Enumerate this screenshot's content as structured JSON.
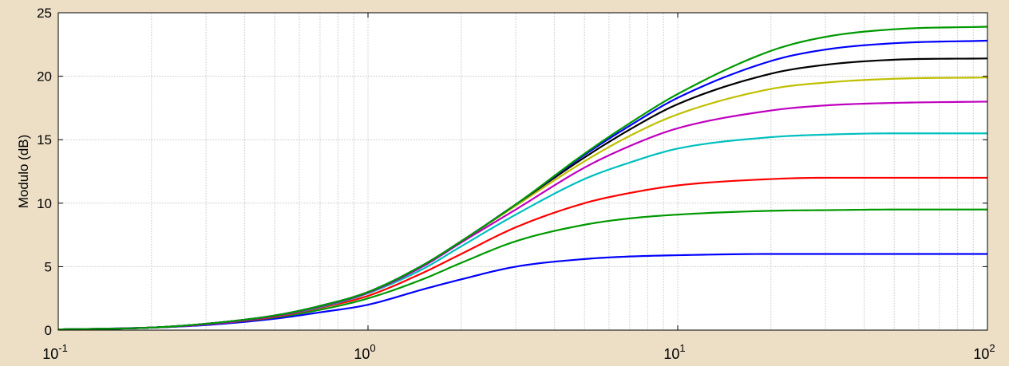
{
  "chart_data": {
    "type": "line",
    "title": "",
    "xlabel": "",
    "ylabel": "Modulo (dB)",
    "xscale": "log",
    "xlim": [
      0.1,
      100
    ],
    "ylim": [
      0,
      25
    ],
    "grid": true,
    "legend": "none",
    "x_ticks": [
      {
        "value": 0.1,
        "base": "10",
        "exp": "-1"
      },
      {
        "value": 1,
        "base": "10",
        "exp": "0"
      },
      {
        "value": 10,
        "base": "10",
        "exp": "1"
      },
      {
        "value": 100,
        "base": "10",
        "exp": "2"
      }
    ],
    "y_ticks": [
      {
        "value": 0,
        "label": "0"
      },
      {
        "value": 5,
        "label": "5"
      },
      {
        "value": 10,
        "label": "10"
      },
      {
        "value": 15,
        "label": "15"
      },
      {
        "value": 20,
        "label": "20"
      },
      {
        "value": 25,
        "label": "25"
      }
    ],
    "x": [
      0.1,
      0.2,
      0.3,
      0.5,
      0.7,
      1,
      1.5,
      2,
      3,
      5,
      7,
      10,
      20,
      30,
      50,
      100
    ],
    "series": [
      {
        "color": "#0000ff",
        "values": [
          0.05,
          0.2,
          0.4,
          0.9,
          1.4,
          2.0,
          3.2,
          4.0,
          5.0,
          5.6,
          5.8,
          5.9,
          6.0,
          6.0,
          6.0,
          6.0
        ]
      },
      {
        "color": "#009900",
        "values": [
          0.05,
          0.2,
          0.45,
          1.0,
          1.6,
          2.5,
          4.0,
          5.3,
          7.0,
          8.3,
          8.8,
          9.1,
          9.4,
          9.45,
          9.5,
          9.5
        ]
      },
      {
        "color": "#ff0000",
        "values": [
          0.05,
          0.2,
          0.45,
          1.05,
          1.75,
          2.7,
          4.5,
          6.0,
          8.1,
          10.0,
          10.8,
          11.4,
          11.9,
          12.0,
          12.0,
          12.0
        ]
      },
      {
        "color": "#00bfbf",
        "values": [
          0.05,
          0.2,
          0.45,
          1.1,
          1.8,
          2.9,
          4.8,
          6.6,
          9.1,
          11.9,
          13.2,
          14.3,
          15.2,
          15.4,
          15.5,
          15.5
        ]
      },
      {
        "color": "#bf00bf",
        "values": [
          0.05,
          0.2,
          0.45,
          1.1,
          1.85,
          2.95,
          5.0,
          6.9,
          9.5,
          12.8,
          14.5,
          15.9,
          17.3,
          17.7,
          17.9,
          18.0
        ]
      },
      {
        "color": "#bfbf00",
        "values": [
          0.05,
          0.2,
          0.5,
          1.15,
          1.9,
          3.0,
          5.1,
          7.0,
          9.8,
          13.3,
          15.3,
          17.0,
          19.0,
          19.5,
          19.8,
          19.9
        ]
      },
      {
        "color": "#000000",
        "values": [
          0.05,
          0.2,
          0.5,
          1.15,
          1.9,
          3.0,
          5.1,
          7.0,
          9.9,
          13.6,
          15.8,
          17.8,
          20.2,
          20.9,
          21.3,
          21.4
        ]
      },
      {
        "color": "#0000ff",
        "values": [
          0.05,
          0.2,
          0.5,
          1.15,
          1.9,
          3.0,
          5.1,
          7.0,
          9.9,
          13.8,
          16.1,
          18.3,
          21.2,
          22.1,
          22.6,
          22.8
        ]
      },
      {
        "color": "#009900",
        "values": [
          0.05,
          0.2,
          0.5,
          1.15,
          1.9,
          3.0,
          5.1,
          7.0,
          9.9,
          13.9,
          16.3,
          18.6,
          22.0,
          23.1,
          23.7,
          23.9
        ]
      }
    ]
  }
}
